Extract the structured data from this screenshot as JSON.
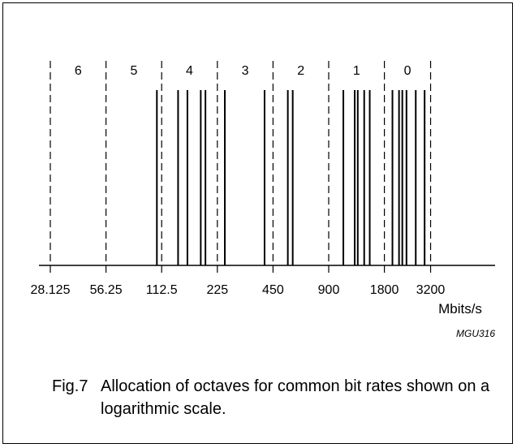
{
  "figure": {
    "octave_labels": [
      "6",
      "5",
      "4",
      "3",
      "2",
      "1",
      "0"
    ],
    "tick_labels": [
      "28.125",
      "56.25",
      "112.5",
      "225",
      "450",
      "900",
      "1800",
      "3200"
    ],
    "unit": "Mbits/s",
    "code": "MGU316"
  },
  "chart_data": {
    "type": "log-scale allocation diagram",
    "x_scale": "log2",
    "x_unit": "Mbits/s",
    "octave_boundaries": [
      28.125,
      56.25,
      112.5,
      225,
      450,
      900,
      1800,
      3200
    ],
    "octaves": [
      {
        "label": "6",
        "from": 28.125,
        "to": 56.25
      },
      {
        "label": "5",
        "from": 56.25,
        "to": 112.5
      },
      {
        "label": "4",
        "from": 112.5,
        "to": 225
      },
      {
        "label": "3",
        "from": 225,
        "to": 450
      },
      {
        "label": "2",
        "from": 450,
        "to": 900
      },
      {
        "label": "1",
        "from": 900,
        "to": 1800
      },
      {
        "label": "0",
        "from": 1800,
        "to": 3200
      }
    ],
    "bit_rates": [
      106,
      138,
      155,
      183,
      194,
      247,
      405,
      541,
      575,
      1080,
      1244,
      1292,
      1400,
      1500,
      1990,
      2160,
      2250,
      2370,
      2660,
      2970
    ]
  },
  "caption": {
    "number": "Fig.7",
    "text": "Allocation of octaves for common bit rates shown on a logarithmic scale."
  }
}
